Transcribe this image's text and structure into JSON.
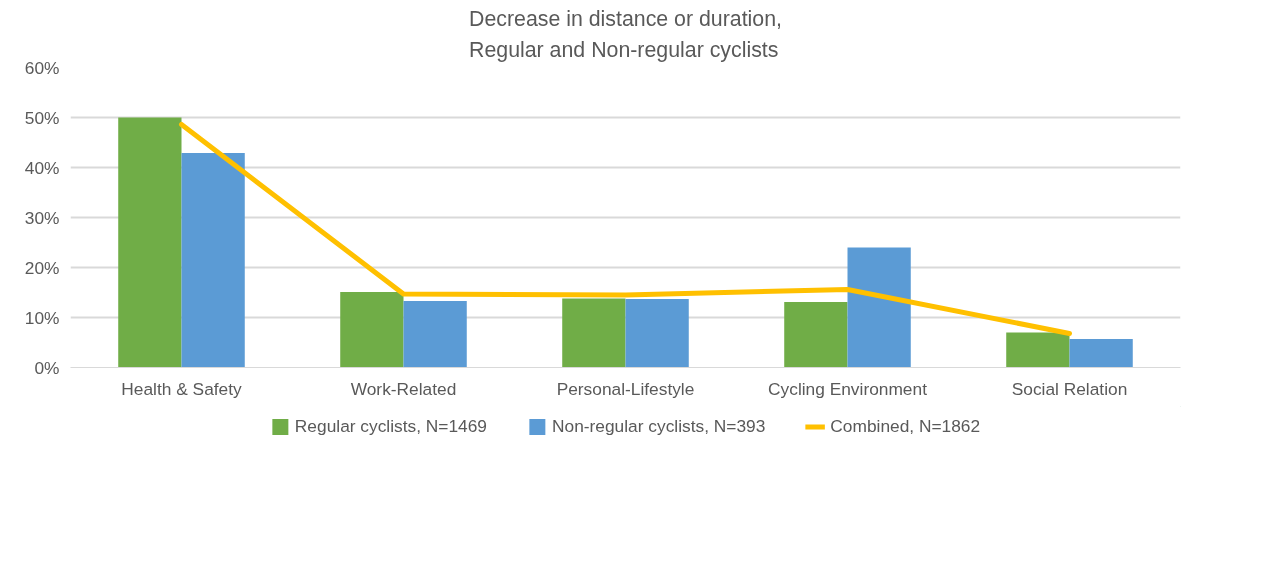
{
  "chart_data": {
    "type": "bar",
    "title": "Decrease in distance or duration,\nRegular and Non-regular cyclists",
    "categories": [
      "Health & Safety",
      "Work-Related",
      "Personal-Lifestyle",
      "Cycling Environment",
      "Social Relation"
    ],
    "series": [
      {
        "name": "Regular cyclists, N=1469",
        "color": "#70ad47",
        "values": [
          50.0,
          15.1,
          13.8,
          13.1,
          7.0
        ]
      },
      {
        "name": "Non-regular cyclists, N=393",
        "color": "#5b9bd5",
        "values": [
          42.9,
          13.3,
          13.7,
          24.0,
          5.7
        ]
      },
      {
        "name": "Combined, N=1862",
        "type": "line",
        "color": "#ffc000",
        "values": [
          48.6,
          14.7,
          14.5,
          15.6,
          6.8
        ]
      }
    ],
    "ylim": [
      0,
      60
    ],
    "yticks": [
      {
        "value": 0,
        "label": "0%"
      },
      {
        "value": 10,
        "label": "10%"
      },
      {
        "value": 20,
        "label": "20%"
      },
      {
        "value": 30,
        "label": "30%"
      },
      {
        "value": 40,
        "label": "40%"
      },
      {
        "value": 50,
        "label": "50%"
      },
      {
        "value": 60,
        "label": "60%"
      }
    ],
    "grid": "y",
    "legend": "bottom"
  }
}
